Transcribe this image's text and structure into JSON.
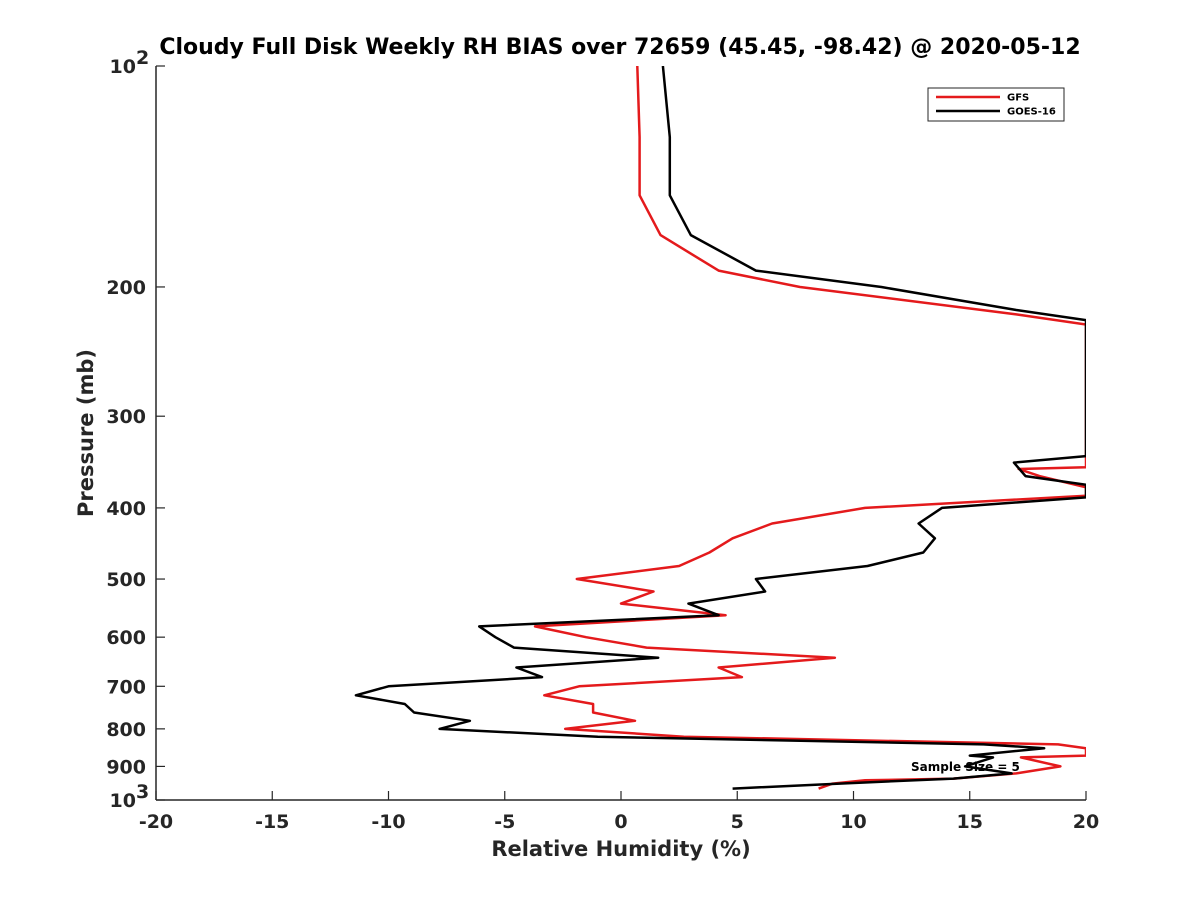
{
  "chart_data": {
    "type": "line",
    "title": "Cloudy Full Disk Weekly RH BIAS over 72659 (45.45, -98.42) @ 2020-05-12",
    "xlabel": "Relative Humidity (%)",
    "ylabel": "Pressure (mb)",
    "xlim": [
      -20,
      20
    ],
    "ylim": [
      100,
      1000
    ],
    "yscale": "log",
    "yreversed": true,
    "grid": false,
    "legend_position": "top-right",
    "x_ticks": [
      "-20",
      "-15",
      "-10",
      "-5",
      "0",
      "5",
      "10",
      "15",
      "20"
    ],
    "y_ticks": [
      {
        "value": 100,
        "label": "10",
        "sup": "2"
      },
      {
        "value": 200,
        "label": "200",
        "sup": ""
      },
      {
        "value": 300,
        "label": "300",
        "sup": ""
      },
      {
        "value": 400,
        "label": "400",
        "sup": ""
      },
      {
        "value": 500,
        "label": "500",
        "sup": ""
      },
      {
        "value": 600,
        "label": "600",
        "sup": ""
      },
      {
        "value": 700,
        "label": "700",
        "sup": ""
      },
      {
        "value": 800,
        "label": "800",
        "sup": ""
      },
      {
        "value": 900,
        "label": "900",
        "sup": ""
      },
      {
        "value": 1000,
        "label": "10",
        "sup": "3"
      }
    ],
    "annotation": "Sample Size = 5",
    "series": [
      {
        "name": "GFS",
        "color": "#e41a1c",
        "points": [
          [
            0.7,
            100
          ],
          [
            0.8,
            125
          ],
          [
            0.8,
            150
          ],
          [
            1.7,
            170
          ],
          [
            4.2,
            190
          ],
          [
            7.7,
            200
          ],
          [
            17,
            218
          ],
          [
            20,
            225
          ],
          [
            20,
            352
          ],
          [
            17.1,
            354
          ],
          [
            18,
            362
          ],
          [
            20,
            375
          ],
          [
            20,
            385
          ],
          [
            10.5,
            400
          ],
          [
            6.5,
            420
          ],
          [
            4.8,
            440
          ],
          [
            3.8,
            460
          ],
          [
            2.5,
            480
          ],
          [
            -1.9,
            500
          ],
          [
            1.4,
            520
          ],
          [
            0,
            540
          ],
          [
            4.5,
            560
          ],
          [
            -3.7,
            580
          ],
          [
            -1.5,
            600
          ],
          [
            1.1,
            620
          ],
          [
            9.2,
            640
          ],
          [
            4.2,
            660
          ],
          [
            5.2,
            680
          ],
          [
            -1.8,
            700
          ],
          [
            -3.3,
            720
          ],
          [
            -1.2,
            740
          ],
          [
            -1.2,
            760
          ],
          [
            0.6,
            780
          ],
          [
            -2.4,
            800
          ],
          [
            2.7,
            820
          ],
          [
            18.8,
            840
          ],
          [
            20,
            850
          ],
          [
            20,
            870
          ],
          [
            17.2,
            875
          ],
          [
            18.9,
            900
          ],
          [
            17.0,
            920
          ],
          [
            14.3,
            935
          ],
          [
            10.5,
            940
          ],
          [
            9.1,
            950
          ],
          [
            8.5,
            965
          ]
        ]
      },
      {
        "name": "GOES-16",
        "color": "#000000",
        "points": [
          [
            1.8,
            100
          ],
          [
            2.1,
            125
          ],
          [
            2.1,
            150
          ],
          [
            3.0,
            170
          ],
          [
            5.8,
            190
          ],
          [
            11.2,
            200
          ],
          [
            17,
            215
          ],
          [
            20,
            222
          ],
          [
            20,
            340
          ],
          [
            16.9,
            347
          ],
          [
            17.4,
            362
          ],
          [
            20,
            372
          ],
          [
            20,
            387
          ],
          [
            13.8,
            400
          ],
          [
            12.8,
            420
          ],
          [
            13.5,
            440
          ],
          [
            13.0,
            460
          ],
          [
            10.6,
            480
          ],
          [
            5.8,
            500
          ],
          [
            6.2,
            520
          ],
          [
            2.9,
            540
          ],
          [
            4.2,
            560
          ],
          [
            -6.1,
            580
          ],
          [
            -5.4,
            600
          ],
          [
            -4.6,
            620
          ],
          [
            1.6,
            640
          ],
          [
            -4.5,
            660
          ],
          [
            -3.4,
            680
          ],
          [
            -10.0,
            700
          ],
          [
            -11.4,
            720
          ],
          [
            -9.3,
            740
          ],
          [
            -8.9,
            760
          ],
          [
            -6.5,
            780
          ],
          [
            -7.8,
            800
          ],
          [
            -1.0,
            820
          ],
          [
            15.6,
            840
          ],
          [
            18.2,
            850
          ],
          [
            15.0,
            870
          ],
          [
            16.0,
            875
          ],
          [
            14.8,
            900
          ],
          [
            16.8,
            920
          ],
          [
            14.3,
            935
          ],
          [
            9.4,
            950
          ],
          [
            4.8,
            965
          ]
        ]
      }
    ]
  }
}
